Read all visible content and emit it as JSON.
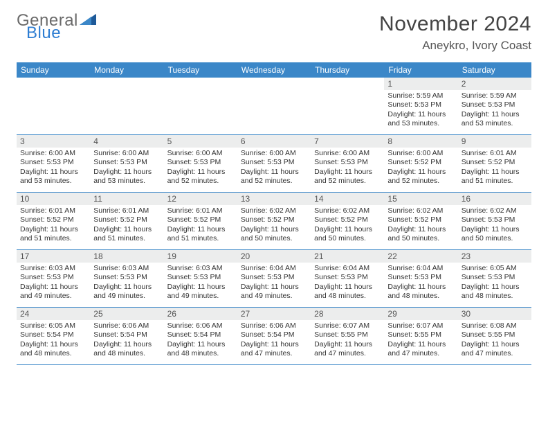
{
  "brand": {
    "word1": "General",
    "word2": "Blue",
    "word1_color": "#6a6a6a",
    "word2_color": "#2d7dd2",
    "triangle_color": "#1e5a99"
  },
  "title": {
    "month_year": "November 2024",
    "location": "Aneykro, Ivory Coast"
  },
  "colors": {
    "header_bar": "#3b87c8",
    "header_text": "#ffffff",
    "daynum_bg": "#eceded",
    "daynum_text": "#555555",
    "body_text": "#333333",
    "rule": "#3b87c8"
  },
  "weekdays": [
    "Sunday",
    "Monday",
    "Tuesday",
    "Wednesday",
    "Thursday",
    "Friday",
    "Saturday"
  ],
  "weeks": [
    [
      null,
      null,
      null,
      null,
      null,
      {
        "n": "1",
        "sunrise": "Sunrise: 5:59 AM",
        "sunset": "Sunset: 5:53 PM",
        "daylight": "Daylight: 11 hours and 53 minutes."
      },
      {
        "n": "2",
        "sunrise": "Sunrise: 5:59 AM",
        "sunset": "Sunset: 5:53 PM",
        "daylight": "Daylight: 11 hours and 53 minutes."
      }
    ],
    [
      {
        "n": "3",
        "sunrise": "Sunrise: 6:00 AM",
        "sunset": "Sunset: 5:53 PM",
        "daylight": "Daylight: 11 hours and 53 minutes."
      },
      {
        "n": "4",
        "sunrise": "Sunrise: 6:00 AM",
        "sunset": "Sunset: 5:53 PM",
        "daylight": "Daylight: 11 hours and 53 minutes."
      },
      {
        "n": "5",
        "sunrise": "Sunrise: 6:00 AM",
        "sunset": "Sunset: 5:53 PM",
        "daylight": "Daylight: 11 hours and 52 minutes."
      },
      {
        "n": "6",
        "sunrise": "Sunrise: 6:00 AM",
        "sunset": "Sunset: 5:53 PM",
        "daylight": "Daylight: 11 hours and 52 minutes."
      },
      {
        "n": "7",
        "sunrise": "Sunrise: 6:00 AM",
        "sunset": "Sunset: 5:53 PM",
        "daylight": "Daylight: 11 hours and 52 minutes."
      },
      {
        "n": "8",
        "sunrise": "Sunrise: 6:00 AM",
        "sunset": "Sunset: 5:52 PM",
        "daylight": "Daylight: 11 hours and 52 minutes."
      },
      {
        "n": "9",
        "sunrise": "Sunrise: 6:01 AM",
        "sunset": "Sunset: 5:52 PM",
        "daylight": "Daylight: 11 hours and 51 minutes."
      }
    ],
    [
      {
        "n": "10",
        "sunrise": "Sunrise: 6:01 AM",
        "sunset": "Sunset: 5:52 PM",
        "daylight": "Daylight: 11 hours and 51 minutes."
      },
      {
        "n": "11",
        "sunrise": "Sunrise: 6:01 AM",
        "sunset": "Sunset: 5:52 PM",
        "daylight": "Daylight: 11 hours and 51 minutes."
      },
      {
        "n": "12",
        "sunrise": "Sunrise: 6:01 AM",
        "sunset": "Sunset: 5:52 PM",
        "daylight": "Daylight: 11 hours and 51 minutes."
      },
      {
        "n": "13",
        "sunrise": "Sunrise: 6:02 AM",
        "sunset": "Sunset: 5:52 PM",
        "daylight": "Daylight: 11 hours and 50 minutes."
      },
      {
        "n": "14",
        "sunrise": "Sunrise: 6:02 AM",
        "sunset": "Sunset: 5:52 PM",
        "daylight": "Daylight: 11 hours and 50 minutes."
      },
      {
        "n": "15",
        "sunrise": "Sunrise: 6:02 AM",
        "sunset": "Sunset: 5:52 PM",
        "daylight": "Daylight: 11 hours and 50 minutes."
      },
      {
        "n": "16",
        "sunrise": "Sunrise: 6:02 AM",
        "sunset": "Sunset: 5:53 PM",
        "daylight": "Daylight: 11 hours and 50 minutes."
      }
    ],
    [
      {
        "n": "17",
        "sunrise": "Sunrise: 6:03 AM",
        "sunset": "Sunset: 5:53 PM",
        "daylight": "Daylight: 11 hours and 49 minutes."
      },
      {
        "n": "18",
        "sunrise": "Sunrise: 6:03 AM",
        "sunset": "Sunset: 5:53 PM",
        "daylight": "Daylight: 11 hours and 49 minutes."
      },
      {
        "n": "19",
        "sunrise": "Sunrise: 6:03 AM",
        "sunset": "Sunset: 5:53 PM",
        "daylight": "Daylight: 11 hours and 49 minutes."
      },
      {
        "n": "20",
        "sunrise": "Sunrise: 6:04 AM",
        "sunset": "Sunset: 5:53 PM",
        "daylight": "Daylight: 11 hours and 49 minutes."
      },
      {
        "n": "21",
        "sunrise": "Sunrise: 6:04 AM",
        "sunset": "Sunset: 5:53 PM",
        "daylight": "Daylight: 11 hours and 48 minutes."
      },
      {
        "n": "22",
        "sunrise": "Sunrise: 6:04 AM",
        "sunset": "Sunset: 5:53 PM",
        "daylight": "Daylight: 11 hours and 48 minutes."
      },
      {
        "n": "23",
        "sunrise": "Sunrise: 6:05 AM",
        "sunset": "Sunset: 5:53 PM",
        "daylight": "Daylight: 11 hours and 48 minutes."
      }
    ],
    [
      {
        "n": "24",
        "sunrise": "Sunrise: 6:05 AM",
        "sunset": "Sunset: 5:54 PM",
        "daylight": "Daylight: 11 hours and 48 minutes."
      },
      {
        "n": "25",
        "sunrise": "Sunrise: 6:06 AM",
        "sunset": "Sunset: 5:54 PM",
        "daylight": "Daylight: 11 hours and 48 minutes."
      },
      {
        "n": "26",
        "sunrise": "Sunrise: 6:06 AM",
        "sunset": "Sunset: 5:54 PM",
        "daylight": "Daylight: 11 hours and 48 minutes."
      },
      {
        "n": "27",
        "sunrise": "Sunrise: 6:06 AM",
        "sunset": "Sunset: 5:54 PM",
        "daylight": "Daylight: 11 hours and 47 minutes."
      },
      {
        "n": "28",
        "sunrise": "Sunrise: 6:07 AM",
        "sunset": "Sunset: 5:55 PM",
        "daylight": "Daylight: 11 hours and 47 minutes."
      },
      {
        "n": "29",
        "sunrise": "Sunrise: 6:07 AM",
        "sunset": "Sunset: 5:55 PM",
        "daylight": "Daylight: 11 hours and 47 minutes."
      },
      {
        "n": "30",
        "sunrise": "Sunrise: 6:08 AM",
        "sunset": "Sunset: 5:55 PM",
        "daylight": "Daylight: 11 hours and 47 minutes."
      }
    ]
  ]
}
